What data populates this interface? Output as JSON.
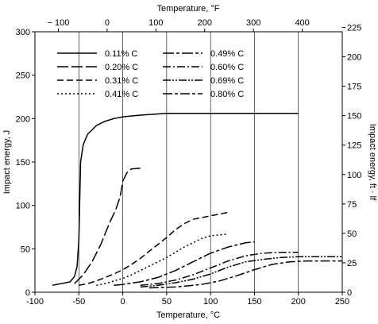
{
  "chart_data": {
    "type": "line",
    "xlabel": "Temperature, °C",
    "top_xlabel": "Temperature, °F",
    "ylabel": "Impact energy, J",
    "right_ylabel": "Impact energy, ft · lf",
    "xlim": [
      -100,
      250
    ],
    "ylim": [
      0,
      300
    ],
    "x_ticks": [
      -100,
      -50,
      0,
      50,
      100,
      150,
      200,
      250
    ],
    "y_ticks": [
      0,
      50,
      100,
      150,
      200,
      250,
      300
    ],
    "top_ticks": [
      -100,
      0,
      100,
      200,
      300,
      400
    ],
    "top_tick_labels": [
      "− 100",
      "0",
      "100",
      "200",
      "300",
      "400"
    ],
    "right_ticks": [
      0,
      25,
      50,
      75,
      100,
      125,
      150,
      175,
      200,
      225
    ],
    "grid": "vertical lines at x ticks",
    "legend_position": "top-left",
    "series": [
      {
        "name": "0.11% C",
        "dash": "",
        "x": [
          -80,
          -60,
          -55,
          -52,
          -50,
          -48,
          -45,
          -40,
          -30,
          -20,
          -10,
          0,
          20,
          50,
          100,
          150,
          200
        ],
        "y": [
          8,
          12,
          18,
          30,
          60,
          150,
          170,
          182,
          192,
          197,
          200,
          202,
          204,
          206,
          206,
          206,
          206
        ]
      },
      {
        "name": "0.20% C",
        "dash": "14,4",
        "x": [
          -55,
          -45,
          -35,
          -25,
          -15,
          -8,
          -3,
          0,
          5,
          10,
          20
        ],
        "y": [
          10,
          20,
          35,
          55,
          80,
          95,
          110,
          128,
          138,
          142,
          143
        ]
      },
      {
        "name": "0.31% C",
        "dash": "8,4",
        "x": [
          -50,
          -40,
          -30,
          -20,
          -10,
          0,
          10,
          20,
          30,
          40,
          50,
          60,
          70,
          80,
          100,
          120
        ],
        "y": [
          8,
          10,
          13,
          17,
          21,
          26,
          32,
          39,
          47,
          55,
          63,
          72,
          79,
          84,
          88,
          92
        ]
      },
      {
        "name": "0.41% C",
        "dash": "2,3",
        "x": [
          -30,
          -20,
          -10,
          0,
          10,
          20,
          30,
          40,
          50,
          60,
          70,
          80,
          90,
          100,
          110,
          120
        ],
        "y": [
          8,
          10,
          13,
          16,
          20,
          25,
          30,
          35,
          40,
          46,
          52,
          57,
          62,
          65,
          66,
          67
        ]
      },
      {
        "name": "0.49% C",
        "dash": "14,3,4,3",
        "x": [
          -10,
          0,
          20,
          40,
          60,
          80,
          100,
          120,
          140,
          150
        ],
        "y": [
          8,
          9,
          12,
          17,
          25,
          35,
          45,
          52,
          57,
          58
        ]
      },
      {
        "name": "0.60% C",
        "dash": "10,3,2,3",
        "x": [
          20,
          40,
          60,
          80,
          100,
          120,
          140,
          160,
          180,
          200
        ],
        "y": [
          8,
          10,
          14,
          20,
          28,
          36,
          42,
          45,
          46,
          46
        ]
      },
      {
        "name": "0.69% C",
        "dash": "10,2,2,2,2,2",
        "x": [
          20,
          40,
          60,
          80,
          100,
          120,
          140,
          160,
          180,
          200,
          250
        ],
        "y": [
          6,
          8,
          11,
          15,
          21,
          29,
          35,
          38,
          40,
          41,
          41
        ]
      },
      {
        "name": "0.80% C",
        "dash": "12,3,4,3",
        "x": [
          30,
          60,
          90,
          110,
          130,
          150,
          170,
          190,
          210,
          250
        ],
        "y": [
          5,
          6,
          9,
          13,
          19,
          26,
          32,
          35,
          36,
          36
        ]
      }
    ]
  }
}
